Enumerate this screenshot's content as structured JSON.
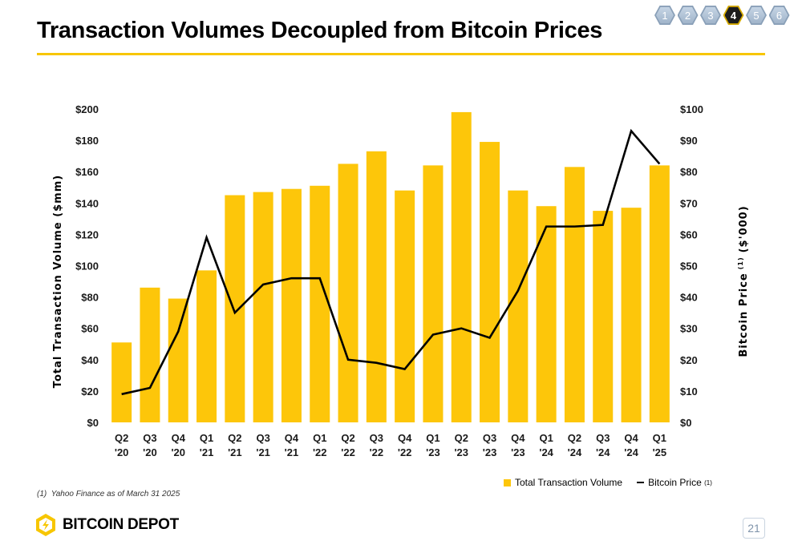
{
  "header": {
    "title": "Transaction Volumes Decoupled from Bitcoin Prices"
  },
  "nav": {
    "pages": [
      "1",
      "2",
      "3",
      "4",
      "5",
      "6"
    ],
    "active_index": 3
  },
  "legend": {
    "volume_label": "Total Transaction Volume",
    "price_label": "Bitcoin Price",
    "price_note": "(1)"
  },
  "footnote": {
    "marker": "(1)",
    "text": "Yahoo Finance as of March 31 2025"
  },
  "footer": {
    "brand": "BITCOIN DEPOT",
    "page_number": "21"
  },
  "colors": {
    "bar": "#FDC60A",
    "line": "#000000",
    "accent": "#F7C600"
  },
  "chart_data": {
    "type": "bar",
    "categories": [
      "Q2 '20",
      "Q3 '20",
      "Q4 '20",
      "Q1 '21",
      "Q2 '21",
      "Q3 '21",
      "Q4 '21",
      "Q1 '22",
      "Q2 '22",
      "Q3 '22",
      "Q4 '22",
      "Q1 '23",
      "Q2 '23",
      "Q3 '23",
      "Q4 '23",
      "Q1 '24",
      "Q2 '24",
      "Q3 '24",
      "Q4 '24",
      "Q1 '25"
    ],
    "category_lines": [
      [
        "Q2",
        "'20"
      ],
      [
        "Q3",
        "'20"
      ],
      [
        "Q4",
        "'20"
      ],
      [
        "Q1",
        "'21"
      ],
      [
        "Q2",
        "'21"
      ],
      [
        "Q3",
        "'21"
      ],
      [
        "Q4",
        "'21"
      ],
      [
        "Q1",
        "'22"
      ],
      [
        "Q2",
        "'22"
      ],
      [
        "Q3",
        "'22"
      ],
      [
        "Q4",
        "'22"
      ],
      [
        "Q1",
        "'23"
      ],
      [
        "Q2",
        "'23"
      ],
      [
        "Q3",
        "'23"
      ],
      [
        "Q4",
        "'23"
      ],
      [
        "Q1",
        "'24"
      ],
      [
        "Q2",
        "'24"
      ],
      [
        "Q3",
        "'24"
      ],
      [
        "Q4",
        "'24"
      ],
      [
        "Q1",
        "'25"
      ]
    ],
    "series": [
      {
        "name": "Total Transaction Volume",
        "type": "bar",
        "axis": "left",
        "values": [
          51,
          86,
          79,
          97,
          145,
          147,
          149,
          151,
          165,
          173,
          148,
          164,
          198,
          179,
          148,
          138,
          163,
          135,
          137,
          164
        ]
      },
      {
        "name": "Bitcoin Price",
        "type": "line",
        "axis": "right",
        "values": [
          9,
          11,
          29,
          59,
          35,
          44,
          46,
          46,
          20,
          19,
          17,
          28,
          30,
          27,
          42,
          62.5,
          62.5,
          63,
          93,
          82.5
        ]
      }
    ],
    "ylabel": "Total Transaction Volume ($mm)",
    "y2label": "Bitcoin Price",
    "y2label_note": "(1)",
    "y2label_units": "($'000)",
    "ylim": [
      0,
      200
    ],
    "y2lim": [
      0,
      100
    ],
    "yticks": [
      "$0",
      "$20",
      "$40",
      "$60",
      "$80",
      "$100",
      "$120",
      "$140",
      "$160",
      "$180",
      "$200"
    ],
    "y2ticks": [
      "$0",
      "$10",
      "$20",
      "$30",
      "$40",
      "$50",
      "$60",
      "$70",
      "$80",
      "$90",
      "$100"
    ],
    "grid": false,
    "legend_position": "bottom-right"
  }
}
